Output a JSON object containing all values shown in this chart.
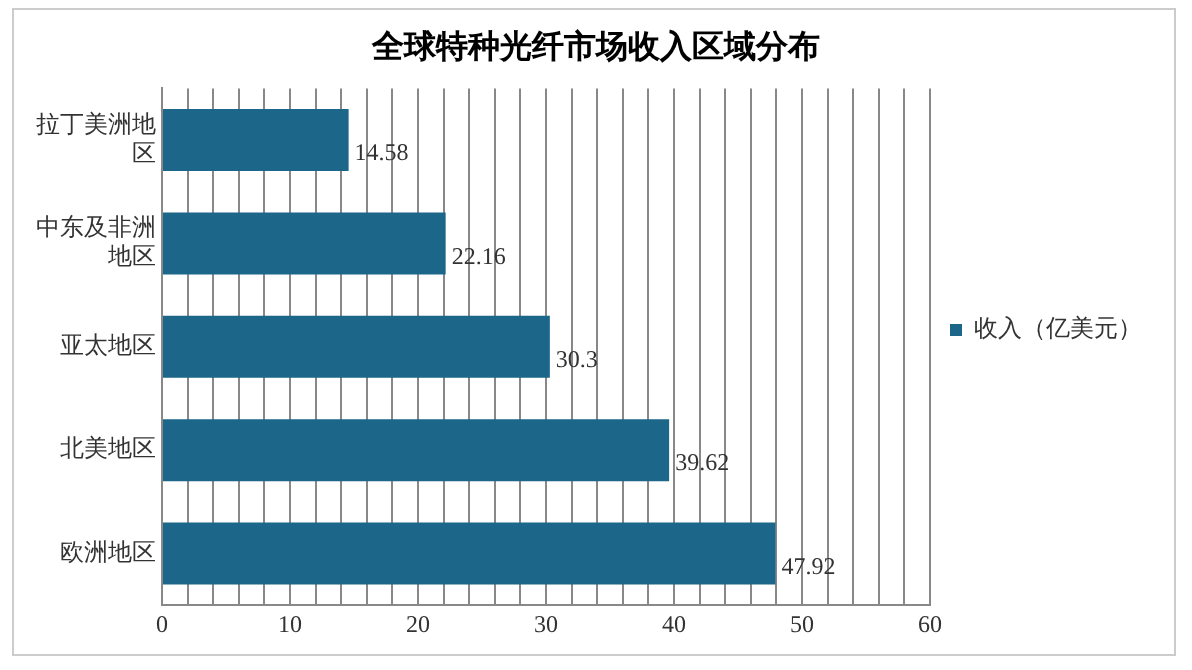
{
  "chart_data": {
    "type": "bar",
    "orientation": "horizontal",
    "title": "全球特种光纤市场收入区域分布",
    "categories": [
      "拉丁美洲地区",
      "中东及非洲地区",
      "亚太地区",
      "北美地区",
      "欧洲地区"
    ],
    "series": [
      {
        "name": "收入（亿美元）",
        "color": "#1b6689",
        "values": [
          14.58,
          22.16,
          30.3,
          39.62,
          47.92
        ]
      }
    ],
    "xlim": [
      0,
      60
    ],
    "xticks": [
      0,
      {
        "value": 2,
        "label": null
      },
      {
        "value": 4,
        "label": null
      },
      {
        "value": 6,
        "label": null
      },
      {
        "value": 8,
        "label": null
      },
      10,
      {
        "value": 12,
        "label": null
      },
      {
        "value": 14,
        "label": null
      },
      {
        "value": 16,
        "label": null
      },
      {
        "value": 18,
        "label": null
      },
      20,
      {
        "value": 22,
        "label": null
      },
      {
        "value": 24,
        "label": null
      },
      {
        "value": 26,
        "label": null
      },
      {
        "value": 28,
        "label": null
      },
      30,
      {
        "value": 32,
        "label": null
      },
      {
        "value": 34,
        "label": null
      },
      {
        "value": 36,
        "label": null
      },
      {
        "value": 38,
        "label": null
      },
      40,
      {
        "value": 42,
        "label": null
      },
      {
        "value": 44,
        "label": null
      },
      {
        "value": 46,
        "label": null
      },
      {
        "value": 48,
        "label": null
      },
      50,
      {
        "value": 52,
        "label": null
      },
      {
        "value": 54,
        "label": null
      },
      {
        "value": 56,
        "label": null
      },
      {
        "value": 58,
        "label": null
      },
      60
    ],
    "grid": "x",
    "legend": "right",
    "data_labels": true
  }
}
